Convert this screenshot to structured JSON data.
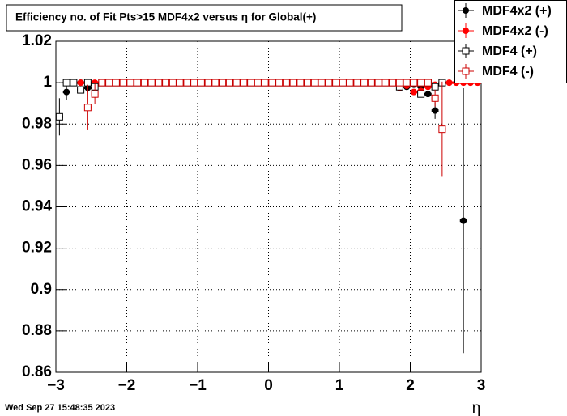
{
  "chart_data": {
    "type": "scatter",
    "title": "Efficiency no. of Fit Pts>15 MDF4x2 versus η for Global(+)",
    "x_label": "η",
    "timestamp": "Wed Sep 27 15:48:35 2023",
    "xlim": [
      -3,
      3
    ],
    "ylim": [
      0.86,
      1.02
    ],
    "xticks": [
      {
        "value": -3,
        "label": "−3"
      },
      {
        "value": -2,
        "label": "−2"
      },
      {
        "value": -1,
        "label": "−1"
      },
      0,
      1,
      2,
      3
    ],
    "yticks": [
      0.86,
      0.88,
      0.9,
      0.92,
      0.94,
      0.96,
      0.98,
      1,
      1.02
    ],
    "grid": true,
    "legend": "top-right",
    "x": [
      -2.95,
      -2.85,
      -2.75,
      -2.65,
      -2.55,
      -2.45,
      -2.35,
      -2.25,
      -2.15,
      -2.05,
      -1.95,
      -1.85,
      -1.75,
      -1.65,
      -1.55,
      -1.45,
      -1.35,
      -1.25,
      -1.15,
      -1.05,
      -0.95,
      -0.85,
      -0.75,
      -0.65,
      -0.55,
      -0.45,
      -0.35,
      -0.25,
      -0.15,
      -0.05,
      0.05,
      0.15,
      0.25,
      0.35,
      0.45,
      0.55,
      0.65,
      0.75,
      0.85,
      0.95,
      1.05,
      1.15,
      1.25,
      1.35,
      1.45,
      1.55,
      1.65,
      1.75,
      1.85,
      1.95,
      2.05,
      2.15,
      2.25,
      2.35,
      2.45,
      2.55,
      2.65,
      2.75,
      2.85,
      2.95
    ],
    "series": [
      {
        "name": "MDF4x2 (+)",
        "color": "#000000",
        "marker": "filled-circle",
        "values": [
          null,
          0.9955,
          1,
          1,
          0.9975,
          0.999,
          1,
          1,
          1,
          1,
          1,
          1,
          1,
          1,
          1,
          1,
          1,
          1,
          1,
          1,
          1,
          1,
          1,
          1,
          1,
          1,
          1,
          1,
          1,
          1,
          1,
          1,
          1,
          1,
          1,
          1,
          1,
          1,
          1,
          1,
          1,
          1,
          1,
          1,
          1,
          1,
          1,
          1,
          0.9975,
          0.998,
          0.999,
          0.998,
          0.9945,
          0.9865,
          1,
          null,
          null,
          0.9333,
          null,
          null
        ],
        "errors": [
          null,
          0.004,
          null,
          null,
          0.002,
          null,
          null,
          null,
          null,
          null,
          null,
          null,
          null,
          null,
          null,
          null,
          null,
          null,
          null,
          null,
          null,
          null,
          null,
          null,
          null,
          null,
          null,
          null,
          null,
          null,
          null,
          null,
          null,
          null,
          null,
          null,
          null,
          null,
          null,
          null,
          null,
          null,
          null,
          null,
          null,
          null,
          null,
          null,
          null,
          null,
          null,
          null,
          null,
          0.004,
          null,
          null,
          null,
          0.064,
          null,
          null
        ]
      },
      {
        "name": "MDF4x2 (-)",
        "color": "#ff0000",
        "marker": "filled-circle",
        "values": [
          null,
          null,
          1,
          1,
          1,
          1,
          1,
          1,
          1,
          1,
          1,
          1,
          1,
          1,
          1,
          1,
          1,
          1,
          1,
          1,
          1,
          1,
          1,
          1,
          1,
          1,
          1,
          1,
          1,
          1,
          1,
          1,
          1,
          1,
          1,
          1,
          1,
          1,
          1,
          1,
          1,
          1,
          1,
          1,
          1,
          1,
          1,
          1,
          0.9975,
          0.9985,
          0.9955,
          0.996,
          0.998,
          0.999,
          1,
          1,
          1,
          1,
          1,
          1
        ]
      },
      {
        "name": "MDF4 (+)",
        "color": "#000000",
        "marker": "open-square",
        "values": [
          0.9835,
          1,
          1,
          0.9965,
          1,
          0.998,
          1,
          1,
          1,
          1,
          1,
          1,
          1,
          1,
          1,
          1,
          1,
          1,
          1,
          1,
          1,
          1,
          1,
          1,
          1,
          1,
          1,
          1,
          1,
          1,
          1,
          1,
          1,
          1,
          1,
          1,
          1,
          1,
          1,
          1,
          1,
          1,
          1,
          1,
          1,
          1,
          1,
          1,
          0.998,
          1,
          1,
          0.9945,
          1,
          0.998,
          1,
          null,
          null,
          null,
          null,
          null
        ],
        "errors": [
          0.009,
          null,
          null,
          null,
          null,
          null,
          null,
          null,
          null,
          null,
          null,
          null,
          null,
          null,
          null,
          null,
          null,
          null,
          null,
          null,
          null,
          null,
          null,
          null,
          null,
          null,
          null,
          null,
          null,
          null,
          null,
          null,
          null,
          null,
          null,
          null,
          null,
          null,
          null,
          null,
          null,
          null,
          null,
          null,
          null,
          null,
          null,
          null,
          null,
          null,
          null,
          null,
          null,
          null,
          null,
          null,
          null,
          null,
          null,
          null
        ]
      },
      {
        "name": "MDF4 (-)",
        "color": "#cc0000",
        "marker": "open-square",
        "values": [
          null,
          null,
          null,
          null,
          0.988,
          0.9945,
          1,
          1,
          1,
          1,
          1,
          1,
          1,
          1,
          1,
          1,
          1,
          1,
          1,
          1,
          1,
          1,
          1,
          1,
          1,
          1,
          1,
          1,
          1,
          1,
          1,
          1,
          1,
          1,
          1,
          1,
          1,
          1,
          1,
          1,
          1,
          1,
          1,
          1,
          1,
          1,
          1,
          1,
          1,
          1,
          1,
          1,
          1,
          0.9925,
          0.9775,
          null,
          null,
          null,
          null,
          null
        ],
        "errors": [
          null,
          null,
          null,
          null,
          0.011,
          0.005,
          null,
          null,
          null,
          null,
          null,
          null,
          null,
          null,
          null,
          null,
          null,
          null,
          null,
          null,
          null,
          null,
          null,
          null,
          null,
          null,
          null,
          null,
          null,
          null,
          null,
          null,
          null,
          null,
          null,
          null,
          null,
          null,
          null,
          null,
          null,
          null,
          null,
          null,
          null,
          null,
          null,
          null,
          null,
          null,
          null,
          null,
          null,
          0.004,
          0.023,
          null,
          null,
          null,
          null,
          null
        ]
      }
    ]
  }
}
